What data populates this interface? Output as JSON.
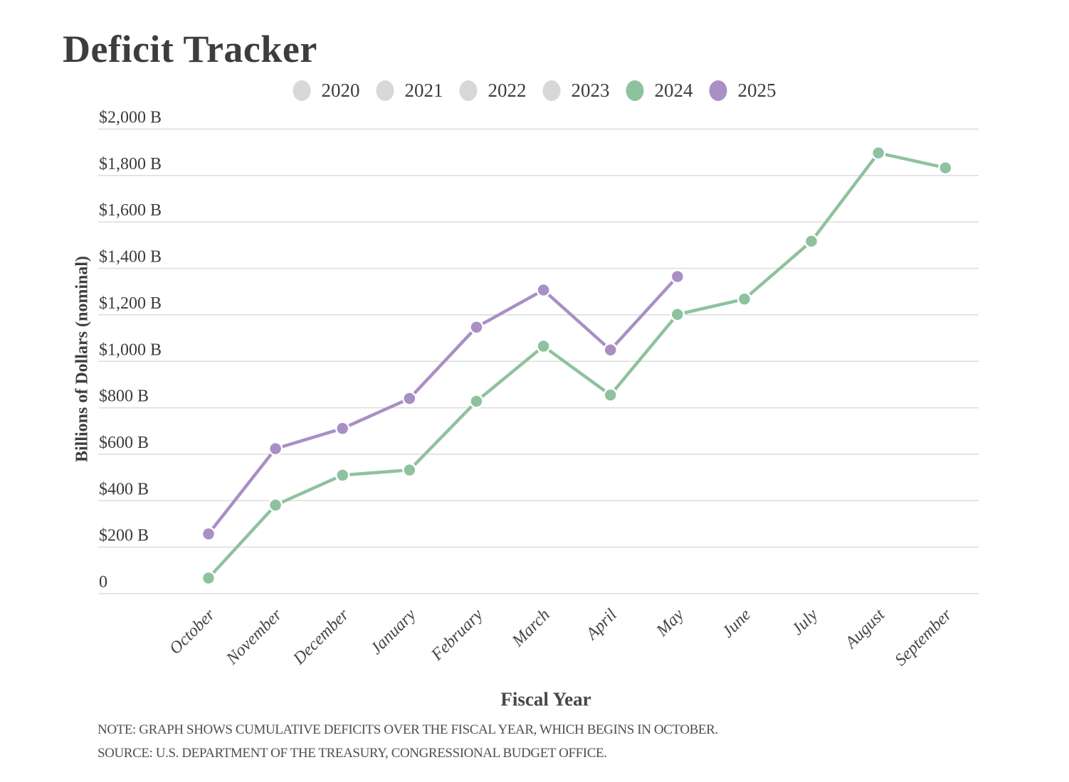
{
  "title": "Deficit Tracker",
  "note": "NOTE: GRAPH SHOWS CUMULATIVE DEFICITS OVER THE FISCAL YEAR, WHICH BEGINS IN OCTOBER.",
  "source": "SOURCE: U.S. DEPARTMENT OF THE TREASURY, CONGRESSIONAL BUDGET OFFICE.",
  "colors": {
    "inactive_grey": "#d8d8d8",
    "year_2024_green": "#8ec29e",
    "year_2025_purple": "#a98fc4",
    "gridline": "#dcdcdc",
    "text_dark": "#3d3d3d"
  },
  "legend": {
    "items": [
      {
        "label": "2020",
        "color": "#d8d8d8",
        "active": false
      },
      {
        "label": "2021",
        "color": "#d8d8d8",
        "active": false
      },
      {
        "label": "2022",
        "color": "#d8d8d8",
        "active": false
      },
      {
        "label": "2023",
        "color": "#d8d8d8",
        "active": false
      },
      {
        "label": "2024",
        "color": "#8ec29e",
        "active": true
      },
      {
        "label": "2025",
        "color": "#a98fc4",
        "active": true
      }
    ]
  },
  "chart_data": {
    "type": "line",
    "title": "Deficit Tracker",
    "xlabel": "Fiscal Year",
    "ylabel": "Billions of Dollars (nominal)",
    "ylim": [
      0,
      2000
    ],
    "grid": true,
    "legend_position": "top",
    "categories": [
      "October",
      "November",
      "December",
      "January",
      "February",
      "March",
      "April",
      "May",
      "June",
      "July",
      "August",
      "September"
    ],
    "yticks": [
      {
        "value": 0,
        "label": "0"
      },
      {
        "value": 200,
        "label": "$200 B"
      },
      {
        "value": 400,
        "label": "$400 B"
      },
      {
        "value": 600,
        "label": "$600 B"
      },
      {
        "value": 800,
        "label": "$800 B"
      },
      {
        "value": 1000,
        "label": "$1,000 B"
      },
      {
        "value": 1200,
        "label": "$1,200 B"
      },
      {
        "value": 1400,
        "label": "$1,400 B"
      },
      {
        "value": 1600,
        "label": "$1,600 B"
      },
      {
        "value": 1800,
        "label": "$1,800 B"
      },
      {
        "value": 2000,
        "label": "$2,000 B"
      }
    ],
    "series": [
      {
        "name": "2024",
        "color": "#8ec29e",
        "values": [
          67,
          381,
          510,
          532,
          828,
          1065,
          855,
          1202,
          1268,
          1517,
          1897,
          1833
        ]
      },
      {
        "name": "2025",
        "color": "#a98fc4",
        "values": [
          257,
          624,
          711,
          840,
          1147,
          1307,
          1049,
          1365
        ]
      }
    ]
  }
}
